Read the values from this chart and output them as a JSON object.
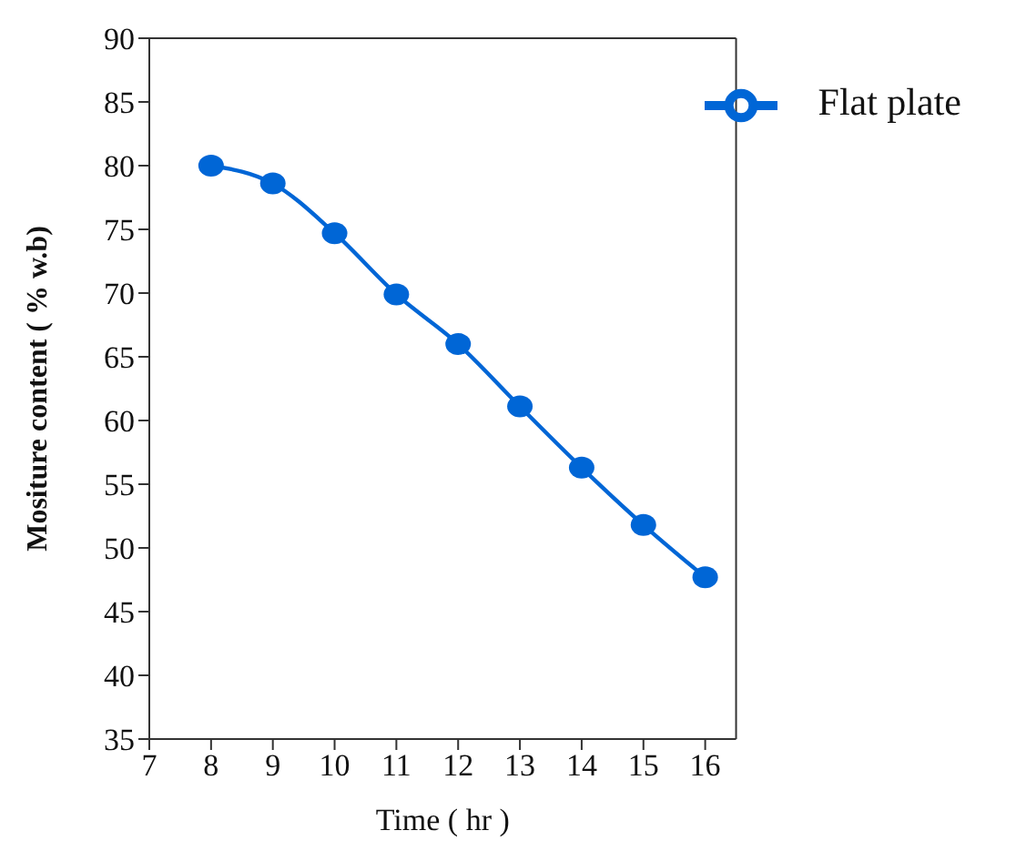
{
  "chart_data": {
    "type": "line",
    "xlabel": "Time ( hr )",
    "ylabel": "Mositure content ( % w.b)",
    "x": [
      8,
      9,
      10,
      11,
      12,
      13,
      14,
      15,
      16
    ],
    "series": [
      {
        "name": "Flat plate",
        "color": "#0066d6",
        "values": [
          80,
          78.6,
          74.7,
          69.9,
          66,
          61.1,
          56.3,
          51.8,
          47.7
        ]
      }
    ],
    "xlim": [
      7,
      16.5
    ],
    "xticks": [
      7,
      8,
      9,
      10,
      11,
      12,
      13,
      14,
      15,
      16
    ],
    "ylim": [
      35,
      90
    ],
    "yticks": [
      35,
      40,
      45,
      50,
      55,
      60,
      65,
      70,
      75,
      80,
      85,
      90
    ],
    "marker": "circle",
    "line_style": "solid",
    "legend": "top right",
    "grid": false
  }
}
